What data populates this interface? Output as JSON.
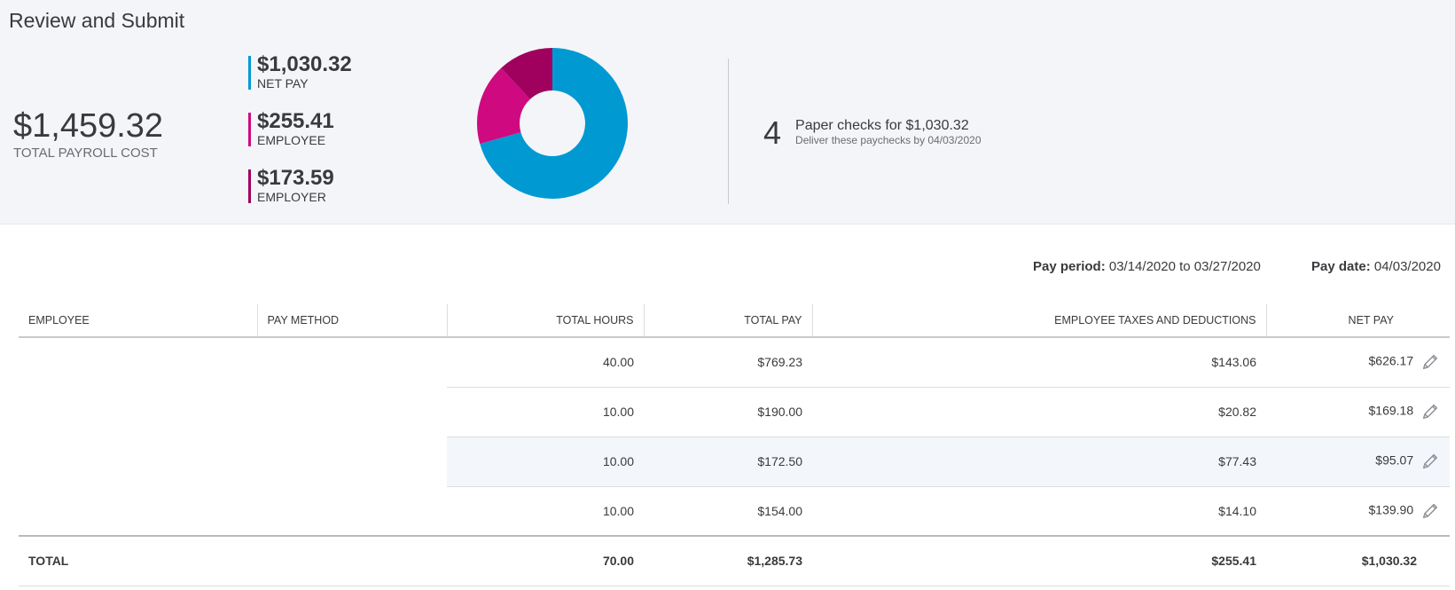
{
  "page_title": "Review and Submit",
  "total_cost": {
    "amount": "$1,459.32",
    "label": "TOTAL PAYROLL COST"
  },
  "breakdown": [
    {
      "value": "$1,030.32",
      "label": "NET PAY",
      "color": "#0099d2"
    },
    {
      "value": "$255.41",
      "label": "EMPLOYEE",
      "color": "#cf0a80"
    },
    {
      "value": "$173.59",
      "label": "EMPLOYER",
      "color": "#a0005e"
    }
  ],
  "donut": {
    "segments": [
      1030.32,
      255.41,
      173.59
    ],
    "colors": [
      "#0099d2",
      "#cf0a80",
      "#a0005e"
    ]
  },
  "checks": {
    "count": "4",
    "title": "Paper checks for $1,030.32",
    "subtitle": "Deliver these paychecks by 04/03/2020"
  },
  "pay_period": {
    "label": "Pay period:",
    "value": "03/14/2020 to 03/27/2020"
  },
  "pay_date": {
    "label": "Pay date:",
    "value": "04/03/2020"
  },
  "table": {
    "headers": {
      "employee": "EMPLOYEE",
      "pay_method": "PAY METHOD",
      "total_hours": "TOTAL HOURS",
      "total_pay": "TOTAL PAY",
      "taxes": "EMPLOYEE TAXES AND DEDUCTIONS",
      "net_pay": "NET PAY"
    },
    "rows": [
      {
        "hours": "40.00",
        "total_pay": "$769.23",
        "taxes": "$143.06",
        "net_pay": "$626.17"
      },
      {
        "hours": "10.00",
        "total_pay": "$190.00",
        "taxes": "$20.82",
        "net_pay": "$169.18"
      },
      {
        "hours": "10.00",
        "total_pay": "$172.50",
        "taxes": "$77.43",
        "net_pay": "$95.07"
      },
      {
        "hours": "10.00",
        "total_pay": "$154.00",
        "taxes": "$14.10",
        "net_pay": "$139.90"
      }
    ],
    "total": {
      "label": "TOTAL",
      "hours": "70.00",
      "total_pay": "$1,285.73",
      "taxes": "$255.41",
      "net_pay": "$1,030.32"
    }
  },
  "icons": {
    "edit": "pencil-icon"
  }
}
